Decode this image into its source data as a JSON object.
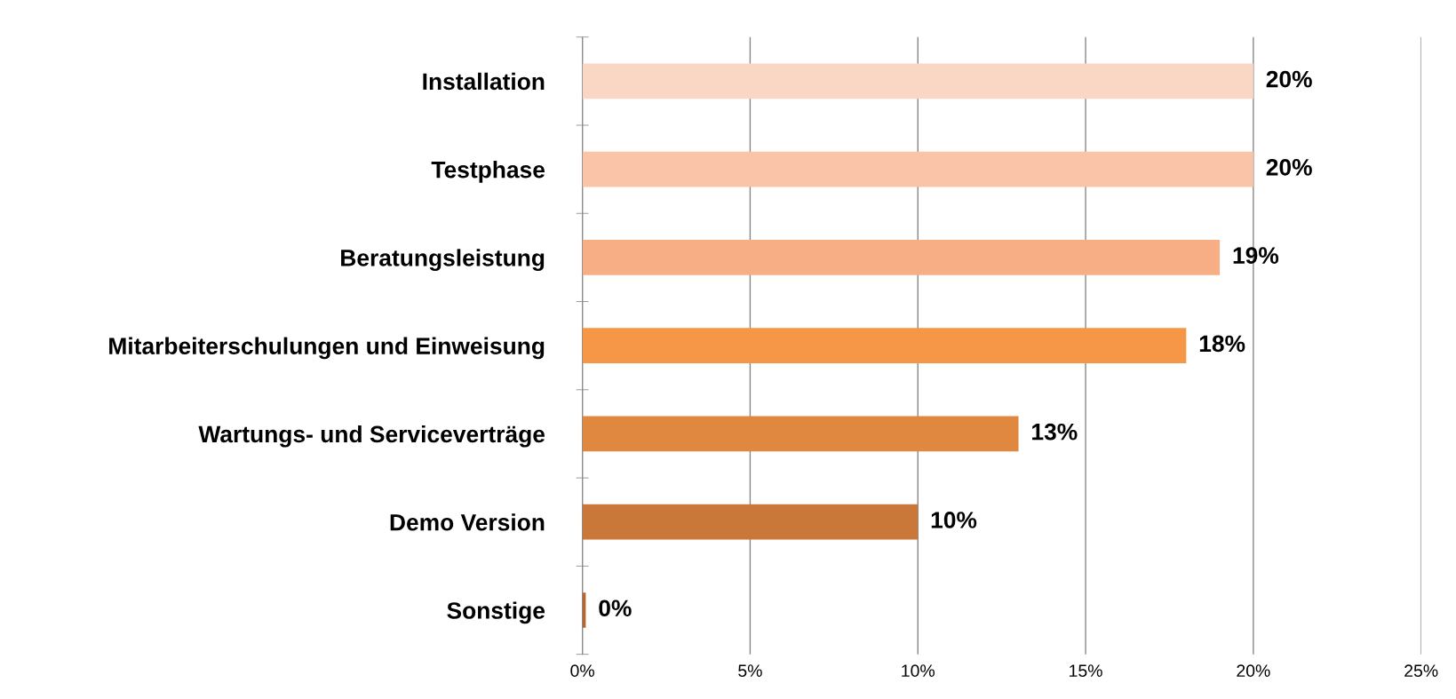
{
  "chart_data": {
    "type": "bar",
    "orientation": "horizontal",
    "categories": [
      "Installation",
      "Testphase",
      "Beratungsleistung",
      "Mitarbeiterschulungen und Einweisung",
      "Wartungs- und Serviceverträge",
      "Demo Version",
      "Sonstige"
    ],
    "values": [
      20,
      20,
      19,
      18,
      13,
      10,
      0.1
    ],
    "colors": [
      "#fad7c5",
      "#f9c4a8",
      "#f7ae84",
      "#f69647",
      "#e0883f",
      "#c97839",
      "#b8682e"
    ],
    "value_labels": [
      "20%",
      "20%",
      "19%",
      "18%",
      "13%",
      "10%",
      "0%"
    ],
    "xlim": [
      0,
      25
    ],
    "xticks": [
      {
        "value": 0,
        "label": "0%"
      },
      {
        "value": 5,
        "label": "5%"
      },
      {
        "value": 10,
        "label": "10%"
      },
      {
        "value": 15,
        "label": "15%"
      },
      {
        "value": 20,
        "label": "20%"
      },
      {
        "value": 25,
        "label": "25%"
      }
    ],
    "grid": "x",
    "legend": false
  }
}
